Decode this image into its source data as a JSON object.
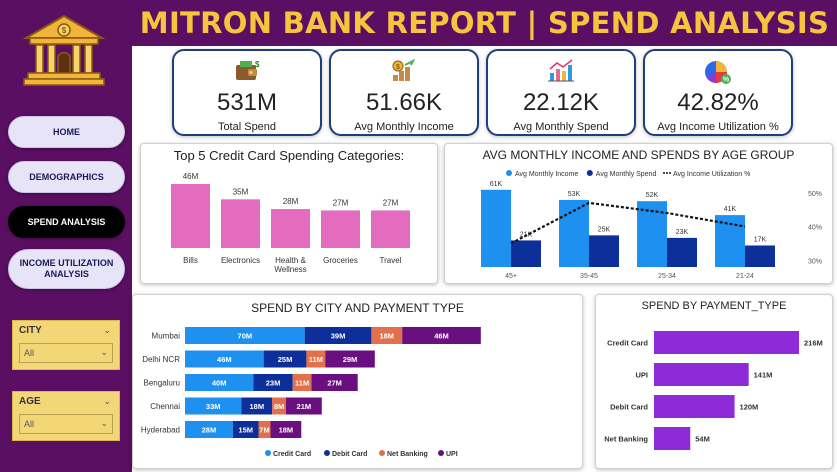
{
  "header": {
    "title": "MITRON BANK REPORT | SPEND ANALYSIS"
  },
  "nav": {
    "home": "HOME",
    "demographics": "DEMOGRAPHICS",
    "spend": "SPEND ANALYSIS",
    "income_line1": "INCOME UTILIZATION",
    "income_line2": "ANALYSIS"
  },
  "slicers": {
    "city": {
      "label": "CITY",
      "value": "All"
    },
    "age": {
      "label": "AGE",
      "value": "All"
    }
  },
  "kpis": [
    {
      "value": "531M",
      "label": "Total Spend",
      "icon": "wallet-icon"
    },
    {
      "value": "51.66K",
      "label": "Avg Monthly Income",
      "icon": "money-growth-icon"
    },
    {
      "value": "22.12K",
      "label": "Avg Monthly Spend",
      "icon": "bar-chart-icon"
    },
    {
      "value": "42.82%",
      "label": "Avg Income Utilization %",
      "icon": "pie-chart-icon"
    }
  ],
  "colors": {
    "sidebar": "#5a0f62",
    "title": "#f7c43e",
    "pink_bar": "#e46cbe",
    "light_blue": "#1e90f0",
    "dark_blue": "#0d2f9a",
    "orange": "#e2704a",
    "purple": "#6a0f80",
    "violet": "#8e2ad8"
  },
  "chart_data": [
    {
      "type": "bar",
      "title": "Top 5 Credit Card Spending Categories:",
      "categories": [
        "Bills",
        "Electronics",
        "Health & Wellness",
        "Groceries",
        "Travel"
      ],
      "values": [
        46,
        35,
        28,
        27,
        27
      ],
      "labels": [
        "46M",
        "35M",
        "28M",
        "27M",
        "27M"
      ]
    },
    {
      "type": "bar",
      "title": "AVG MONTHLY INCOME AND SPENDS BY AGE GROUP",
      "categories": [
        "45+",
        "35-45",
        "25-34",
        "21-24"
      ],
      "series": [
        {
          "name": "Avg Monthly Income",
          "values": [
            61,
            53,
            52,
            41
          ],
          "labels": [
            "61K",
            "53K",
            "52K",
            "41K"
          ]
        },
        {
          "name": "Avg Monthly Spend",
          "values": [
            21,
            25,
            23,
            17
          ],
          "labels": [
            "21K",
            "25K",
            "23K",
            "17K"
          ]
        },
        {
          "name": "Avg Income Utilization %",
          "type": "line",
          "values": [
            35,
            47,
            44,
            40
          ]
        }
      ],
      "y2_ticks": [
        "50%",
        "40%",
        "30%"
      ],
      "y2lim": [
        28,
        52
      ],
      "legend": "top"
    },
    {
      "type": "bar",
      "title": "SPEND BY CITY AND PAYMENT TYPE",
      "orientation": "horizontal-stacked",
      "categories": [
        "Mumbai",
        "Delhi NCR",
        "Bengaluru",
        "Chennai",
        "Hyderabad"
      ],
      "series": [
        {
          "name": "Credit Card",
          "values": [
            70,
            46,
            40,
            33,
            28
          ],
          "labels": [
            "70M",
            "46M",
            "40M",
            "33M",
            "28M"
          ]
        },
        {
          "name": "Debit Card",
          "values": [
            39,
            25,
            23,
            18,
            15
          ],
          "labels": [
            "39M",
            "25M",
            "23M",
            "18M",
            "15M"
          ]
        },
        {
          "name": "Net Banking",
          "values": [
            18,
            11,
            11,
            8,
            7
          ],
          "labels": [
            "18M",
            "11M",
            "11M",
            "8M",
            "7M"
          ]
        },
        {
          "name": "UPI",
          "values": [
            46,
            29,
            27,
            21,
            18
          ],
          "labels": [
            "46M",
            "29M",
            "27M",
            "21M",
            "18M"
          ]
        }
      ],
      "legend": "bottom"
    },
    {
      "type": "bar",
      "title": "SPEND BY PAYMENT_TYPE",
      "orientation": "horizontal",
      "categories": [
        "Credit Card",
        "UPI",
        "Debit Card",
        "Net Banking"
      ],
      "values": [
        216,
        141,
        120,
        54
      ],
      "labels": [
        "216M",
        "141M",
        "120M",
        "54M"
      ]
    }
  ]
}
